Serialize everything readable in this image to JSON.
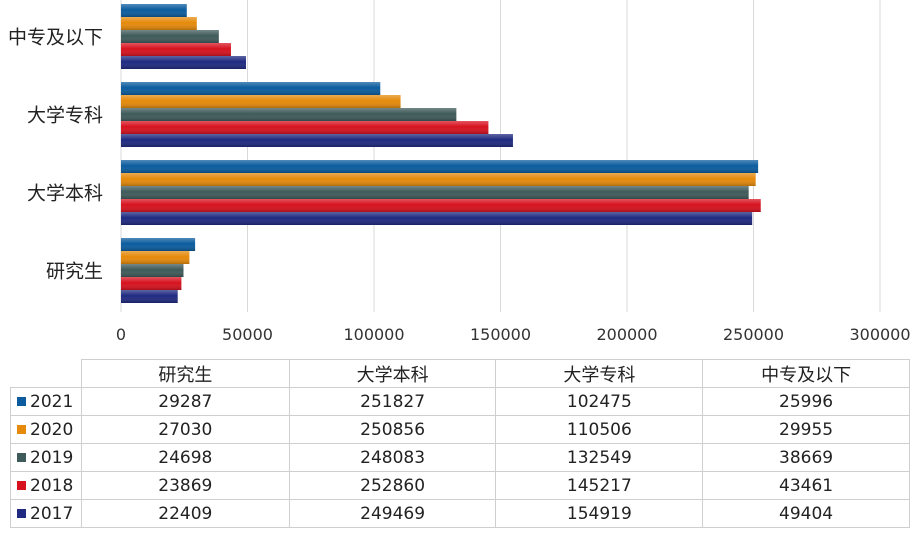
{
  "chart_data": {
    "type": "bar",
    "orientation": "horizontal",
    "categories": [
      "中专及以下",
      "大学专科",
      "大学本科",
      "研究生"
    ],
    "xlim": [
      0,
      300000
    ],
    "xticks": [
      "0",
      "50000",
      "100000",
      "150000",
      "200000",
      "250000",
      "300000"
    ],
    "grid": true,
    "legend_placement": "data-table-left",
    "series": [
      {
        "name": "2021",
        "color": "#0b5c9e",
        "values": [
          25996,
          102475,
          251827,
          29287
        ]
      },
      {
        "name": "2020",
        "color": "#e58a0b",
        "values": [
          29955,
          110506,
          250856,
          27030
        ]
      },
      {
        "name": "2019",
        "color": "#3f5a5a",
        "values": [
          38669,
          132549,
          248083,
          24698
        ]
      },
      {
        "name": "2018",
        "color": "#d7121f",
        "values": [
          43461,
          145217,
          252860,
          23869
        ]
      },
      {
        "name": "2017",
        "color": "#1f2a80",
        "values": [
          49404,
          154919,
          249469,
          22409
        ]
      }
    ],
    "table": {
      "columns": [
        "研究生",
        "大学本科",
        "大学专科",
        "中专及以下"
      ],
      "rows": [
        {
          "label": "2021",
          "values": [
            "29287",
            "251827",
            "102475",
            "25996"
          ]
        },
        {
          "label": "2020",
          "values": [
            "27030",
            "250856",
            "110506",
            "29955"
          ]
        },
        {
          "label": "2019",
          "values": [
            "24698",
            "248083",
            "132549",
            "38669"
          ]
        },
        {
          "label": "2018",
          "values": [
            "23869",
            "252860",
            "145217",
            "43461"
          ]
        },
        {
          "label": "2017",
          "values": [
            "22409",
            "249469",
            "154919",
            "49404"
          ]
        }
      ]
    }
  }
}
